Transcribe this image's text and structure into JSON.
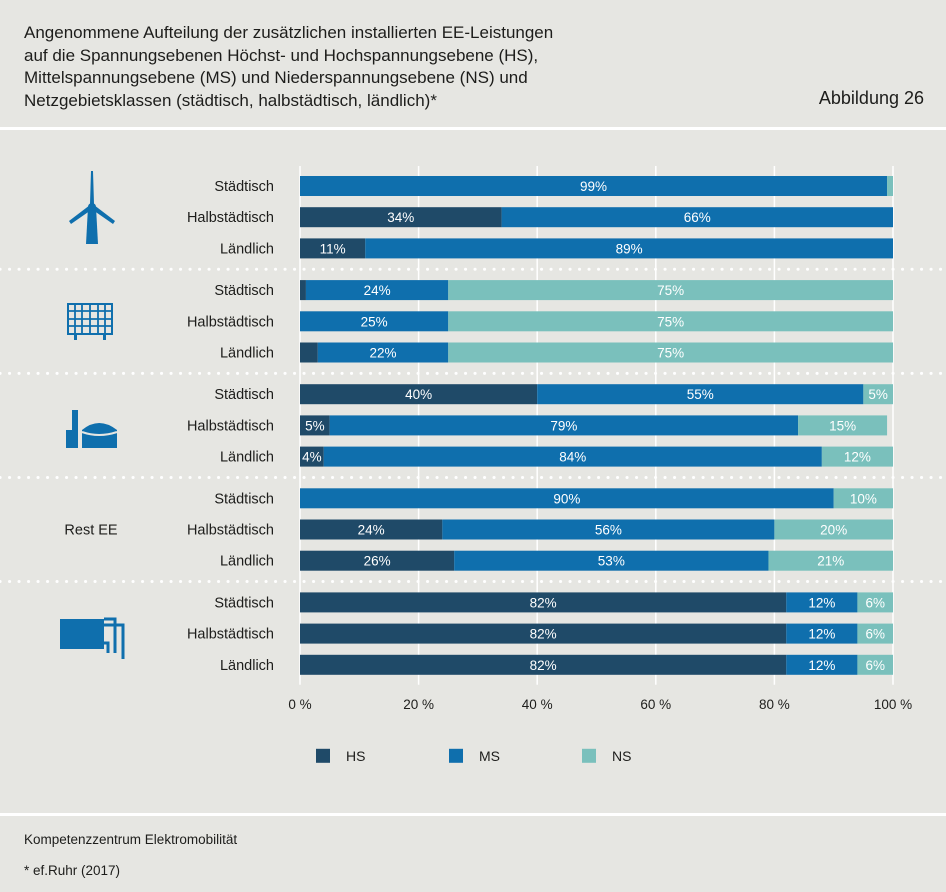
{
  "header": {
    "title_lines": [
      "Angenommene Aufteilung der zusätzlichen installierten EE-Leistungen",
      "auf die Spannungsebenen Höchst- und Hochspannungsebene (HS),",
      "Mittelspannungsebene (MS) und Niederspannungsebene (NS) und",
      "Netzgebietsklassen (städtisch, halbstädtisch, ländlich)*"
    ],
    "figure_number": "Abbildung 26"
  },
  "footer": {
    "source": "Kompetenzzentrum Elektromobilität",
    "note": "* ef.Ruhr (2017)"
  },
  "colors": {
    "HS": "#1f4a68",
    "MS": "#0f6fad",
    "NS": "#7ac0bc",
    "background": "#e6e6e2",
    "icon": "#0f6fad"
  },
  "chart_data": {
    "type": "bar",
    "orientation": "horizontal",
    "stacked": true,
    "xlim": [
      0,
      100
    ],
    "x_ticks": [
      "0 %",
      "20 %",
      "40 %",
      "60 %",
      "80 %",
      "100 %"
    ],
    "grid": true,
    "legend_position": "bottom",
    "series_names": [
      "HS",
      "MS",
      "NS"
    ],
    "groups": [
      {
        "icon": "wind-turbine-icon",
        "label": "",
        "rows": [
          {
            "category": "Städtisch",
            "values": [
              0,
              99,
              1
            ],
            "labels": [
              "",
              "99%",
              ""
            ]
          },
          {
            "category": "Halbstädtisch",
            "values": [
              34,
              66,
              0
            ],
            "labels": [
              "34%",
              "66%",
              ""
            ]
          },
          {
            "category": "Ländlich",
            "values": [
              11,
              89,
              0
            ],
            "labels": [
              "11%",
              "89%",
              ""
            ]
          }
        ]
      },
      {
        "icon": "solar-panel-icon",
        "label": "",
        "rows": [
          {
            "category": "Städtisch",
            "values": [
              1,
              24,
              75
            ],
            "labels": [
              "",
              "24%",
              "75%"
            ]
          },
          {
            "category": "Halbstädtisch",
            "values": [
              0,
              25,
              75
            ],
            "labels": [
              "",
              "25%",
              "75%"
            ]
          },
          {
            "category": "Ländlich",
            "values": [
              3,
              22,
              75
            ],
            "labels": [
              "",
              "22%",
              "75%"
            ]
          }
        ]
      },
      {
        "icon": "biogas-plant-icon",
        "label": "",
        "rows": [
          {
            "category": "Städtisch",
            "values": [
              40,
              55,
              5
            ],
            "labels": [
              "40%",
              "55%",
              "5%"
            ]
          },
          {
            "category": "Halbstädtisch",
            "values": [
              5,
              79,
              15
            ],
            "labels": [
              "5%",
              "79%",
              "15%"
            ]
          },
          {
            "category": "Ländlich",
            "values": [
              4,
              84,
              12
            ],
            "labels": [
              "4%",
              "84%",
              "12%"
            ]
          }
        ]
      },
      {
        "icon": "",
        "label": "Rest EE",
        "rows": [
          {
            "category": "Städtisch",
            "values": [
              0,
              90,
              10
            ],
            "labels": [
              "",
              "90%",
              "10%"
            ]
          },
          {
            "category": "Halbstädtisch",
            "values": [
              24,
              56,
              20
            ],
            "labels": [
              "24%",
              "56%",
              "20%"
            ]
          },
          {
            "category": "Ländlich",
            "values": [
              26,
              53,
              21
            ],
            "labels": [
              "26%",
              "53%",
              "21%"
            ]
          }
        ]
      },
      {
        "icon": "heat-pump-icon",
        "label": "",
        "rows": [
          {
            "category": "Städtisch",
            "values": [
              82,
              12,
              6
            ],
            "labels": [
              "82%",
              "12%",
              "6%"
            ]
          },
          {
            "category": "Halbstädtisch",
            "values": [
              82,
              12,
              6
            ],
            "labels": [
              "82%",
              "12%",
              "6%"
            ]
          },
          {
            "category": "Ländlich",
            "values": [
              82,
              12,
              6
            ],
            "labels": [
              "82%",
              "12%",
              "6%"
            ]
          }
        ]
      }
    ]
  }
}
